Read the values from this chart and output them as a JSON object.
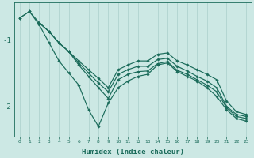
{
  "xlabel": "Humidex (Indice chaleur)",
  "bg_color": "#cce8e4",
  "line_color": "#1a6b5a",
  "grid_color": "#aacfcb",
  "xlim": [
    -0.5,
    23.5
  ],
  "ylim": [
    -2.45,
    -0.45
  ],
  "yticks": [
    -2,
    -1
  ],
  "ytick_labels": [
    "-2",
    "-1"
  ],
  "line_zigzag_x": [
    0,
    1,
    2,
    3,
    4,
    5,
    6,
    7,
    8,
    9,
    10,
    11,
    12,
    13,
    14,
    15,
    16,
    17,
    18,
    19,
    20,
    21,
    22,
    23
  ],
  "line_zigzag_y": [
    -0.68,
    -0.58,
    -0.78,
    -1.05,
    -1.32,
    -1.5,
    -1.68,
    -2.05,
    -2.3,
    -1.95,
    -1.72,
    -1.62,
    -1.55,
    -1.52,
    -1.38,
    -1.35,
    -1.48,
    -1.55,
    -1.62,
    -1.72,
    -1.85,
    -2.05,
    -2.18,
    -2.22
  ],
  "line_top_x": [
    0,
    1,
    2,
    3,
    4,
    5,
    6,
    7,
    8,
    9,
    10,
    11,
    12,
    13,
    14,
    15,
    16,
    17,
    18,
    19,
    20,
    21,
    22,
    23
  ],
  "line_top_y": [
    -0.68,
    -0.58,
    -0.75,
    -0.88,
    -1.05,
    -1.18,
    -1.32,
    -1.45,
    -1.58,
    -1.72,
    -1.45,
    -1.38,
    -1.32,
    -1.32,
    -1.22,
    -1.2,
    -1.32,
    -1.38,
    -1.45,
    -1.52,
    -1.6,
    -1.92,
    -2.08,
    -2.12
  ],
  "line_mid1_x": [
    2,
    3,
    4,
    5,
    6,
    7,
    8,
    9,
    10,
    11,
    12,
    13,
    14,
    15,
    16,
    17,
    18,
    19,
    20,
    21,
    22,
    23
  ],
  "line_mid1_y": [
    -0.75,
    -0.88,
    -1.05,
    -1.18,
    -1.35,
    -1.5,
    -1.65,
    -1.78,
    -1.52,
    -1.45,
    -1.4,
    -1.4,
    -1.3,
    -1.28,
    -1.4,
    -1.47,
    -1.55,
    -1.62,
    -1.72,
    -2.0,
    -2.12,
    -2.15
  ],
  "line_mid2_x": [
    2,
    3,
    4,
    5,
    6,
    7,
    8,
    9,
    10,
    11,
    12,
    13,
    14,
    15,
    16,
    17,
    18,
    19,
    20,
    21,
    22,
    23
  ],
  "line_mid2_y": [
    -0.75,
    -0.88,
    -1.05,
    -1.18,
    -1.38,
    -1.55,
    -1.72,
    -1.88,
    -1.6,
    -1.52,
    -1.48,
    -1.47,
    -1.36,
    -1.33,
    -1.46,
    -1.52,
    -1.6,
    -1.68,
    -1.78,
    -2.02,
    -2.15,
    -2.18
  ]
}
